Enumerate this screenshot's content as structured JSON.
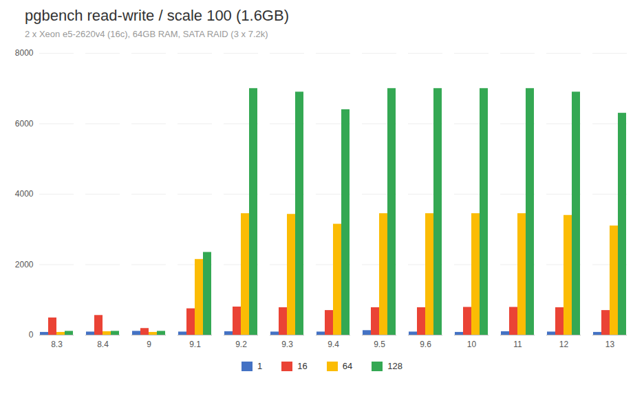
{
  "chart_data": {
    "type": "bar",
    "title": "pgbench read-write / scale 100 (1.6GB)",
    "subtitle": "2 x Xeon e5-2620v4 (16c), 64GB RAM, SATA RAID (3 x 7.2k)",
    "categories": [
      "8.3",
      "8.4",
      "9",
      "9.1",
      "9.2",
      "9.3",
      "9.4",
      "9.5",
      "9.6",
      "10",
      "11",
      "12",
      "13"
    ],
    "series": [
      {
        "name": "1",
        "color": "#4472c4",
        "values": [
          80,
          90,
          110,
          90,
          100,
          90,
          90,
          130,
          90,
          80,
          100,
          90,
          80
        ]
      },
      {
        "name": "16",
        "color": "#ea4335",
        "values": [
          490,
          560,
          190,
          750,
          800,
          780,
          700,
          780,
          780,
          790,
          790,
          780,
          700
        ]
      },
      {
        "name": "64",
        "color": "#fbbc04",
        "values": [
          80,
          100,
          80,
          2150,
          3450,
          3430,
          3150,
          3450,
          3450,
          3450,
          3450,
          3400,
          3100
        ]
      },
      {
        "name": "128",
        "color": "#34a853",
        "values": [
          110,
          110,
          110,
          2350,
          7000,
          6900,
          6400,
          7000,
          7000,
          7000,
          7000,
          6900,
          6300
        ]
      }
    ],
    "ylim": [
      0,
      8000
    ],
    "yticks": [
      0,
      2000,
      4000,
      6000,
      8000
    ],
    "grid": true,
    "legend": "bottom"
  }
}
